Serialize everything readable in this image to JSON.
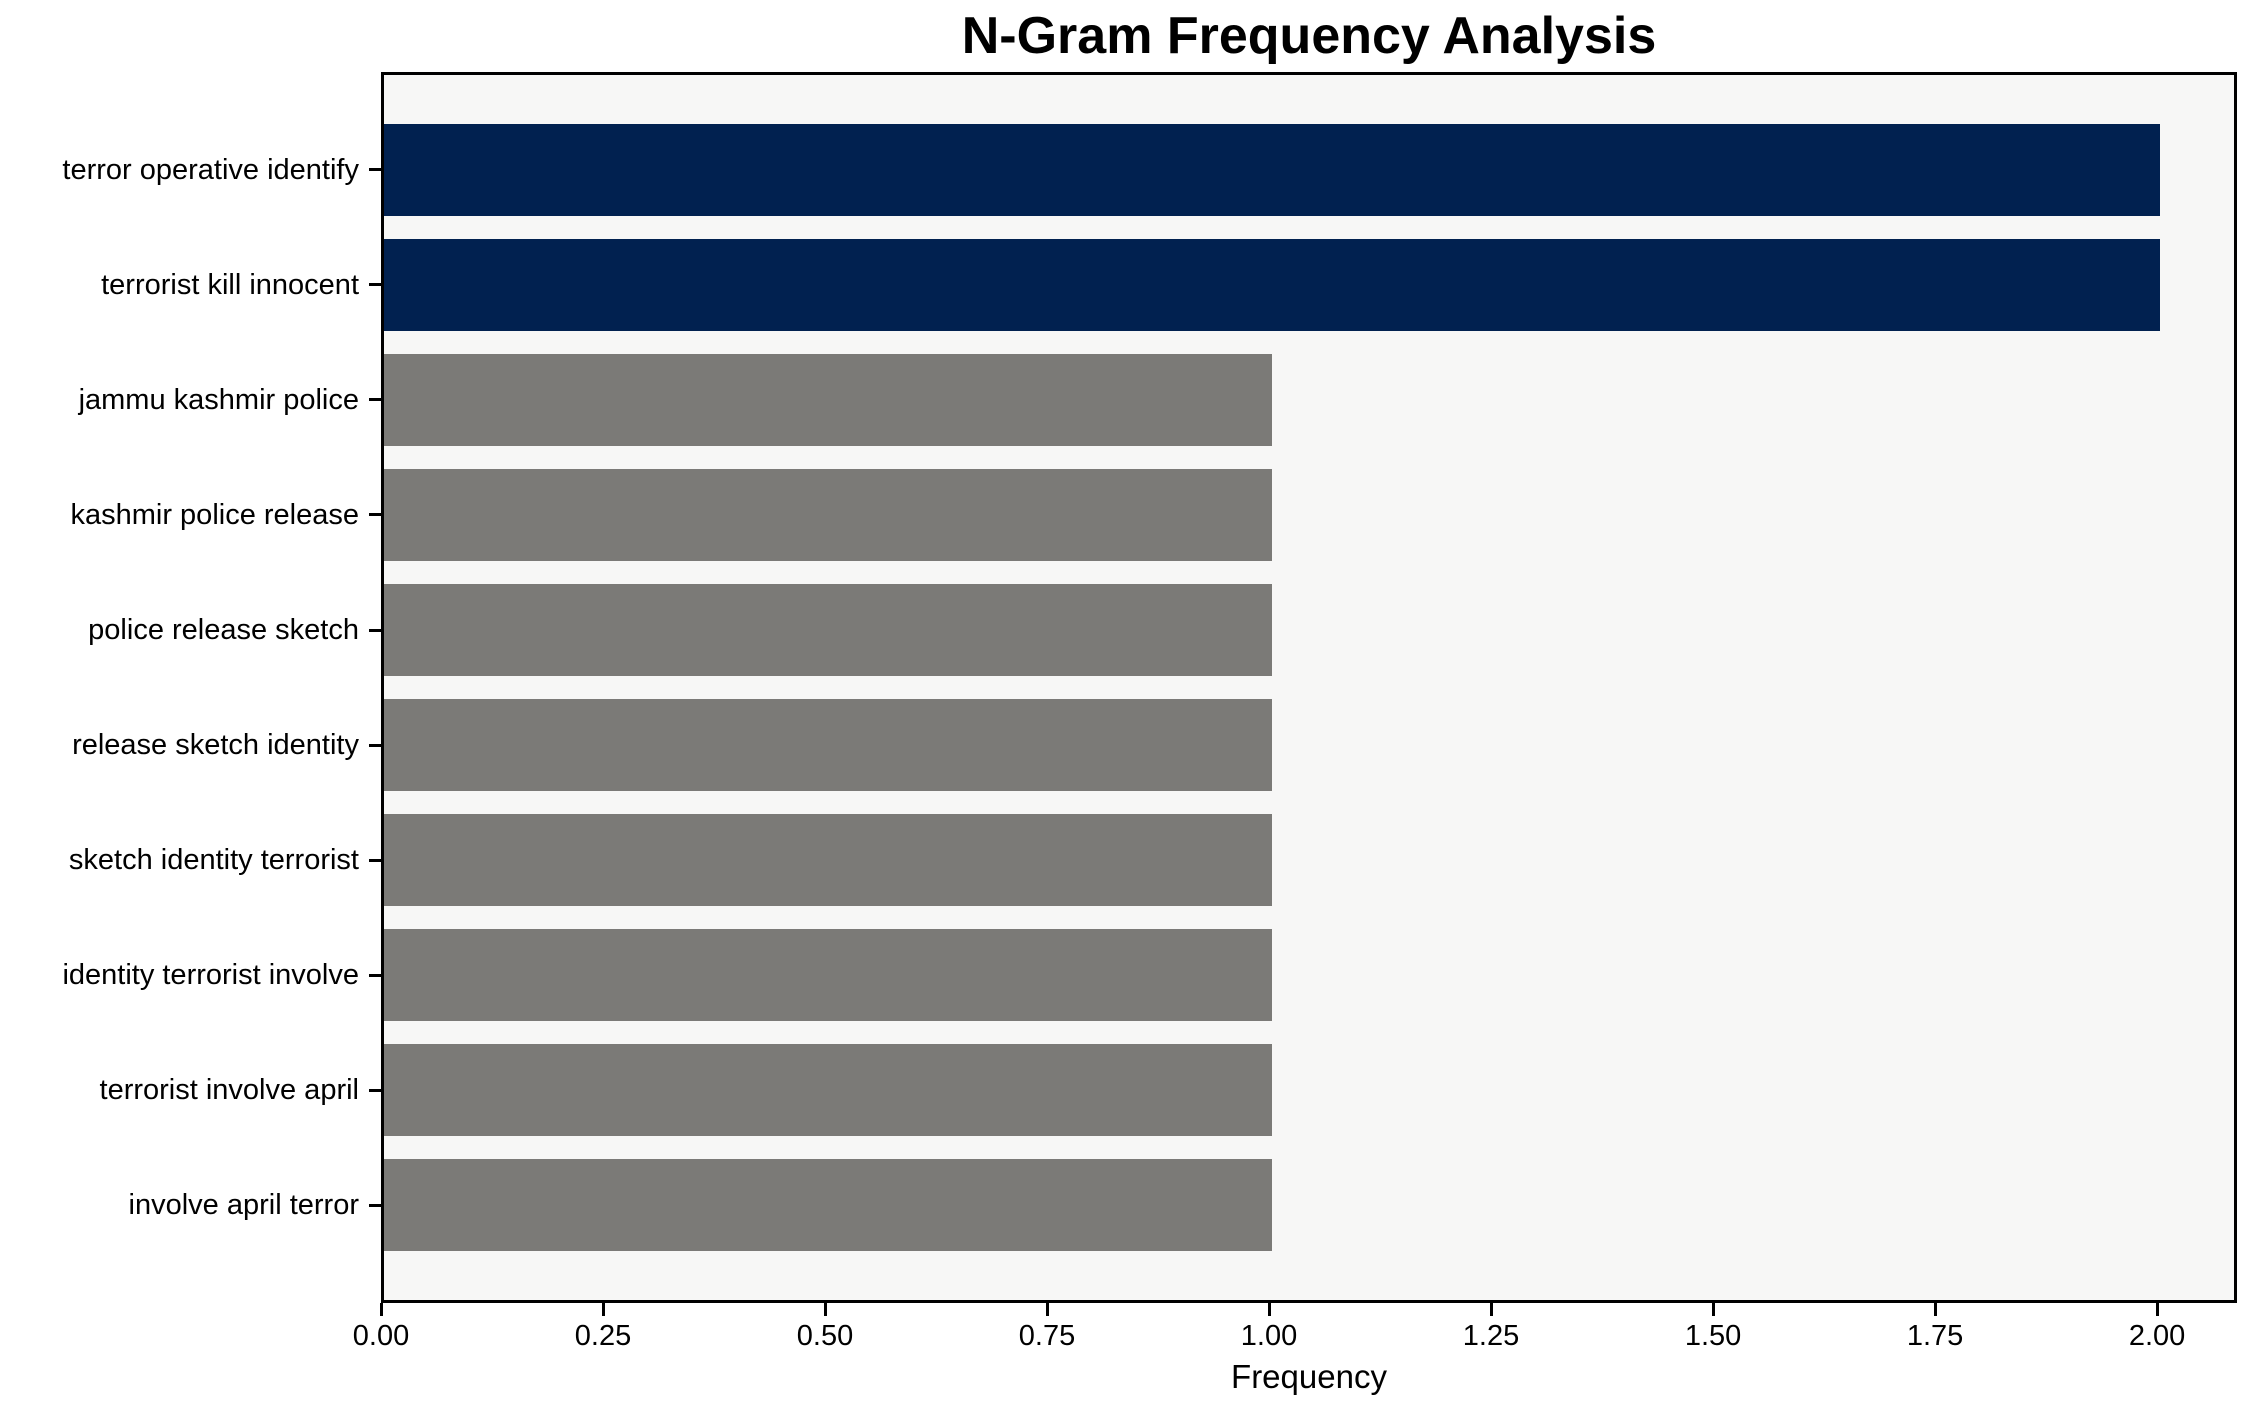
{
  "chart_data": {
    "type": "bar",
    "orientation": "horizontal",
    "title": "N-Gram Frequency Analysis",
    "xlabel": "Frequency",
    "ylabel": "",
    "categories": [
      "terror operative identify",
      "terrorist kill innocent",
      "jammu kashmir police",
      "kashmir police release",
      "police release sketch",
      "release sketch identity",
      "sketch identity terrorist",
      "identity terrorist involve",
      "terrorist involve april",
      "involve april terror"
    ],
    "values": [
      2,
      2,
      1,
      1,
      1,
      1,
      1,
      1,
      1,
      1
    ],
    "bar_colors": [
      "#012150",
      "#012150",
      "#7b7a77",
      "#7b7a77",
      "#7b7a77",
      "#7b7a77",
      "#7b7a77",
      "#7b7a77",
      "#7b7a77",
      "#7b7a77"
    ],
    "highlight_color": "#012150",
    "default_color": "#7b7a77",
    "xlim": [
      0,
      2.09
    ],
    "xticks": [
      0,
      0.25,
      0.5,
      0.75,
      1.0,
      1.25,
      1.5,
      1.75,
      2.0
    ],
    "xtick_labels": [
      "0.00",
      "0.25",
      "0.50",
      "0.75",
      "1.00",
      "1.25",
      "1.50",
      "1.75",
      "2.00"
    ],
    "grid": false,
    "legend": "none",
    "plot_background": "#f7f7f6",
    "figure_background": "#ffffff",
    "axis_color": "#000000"
  }
}
